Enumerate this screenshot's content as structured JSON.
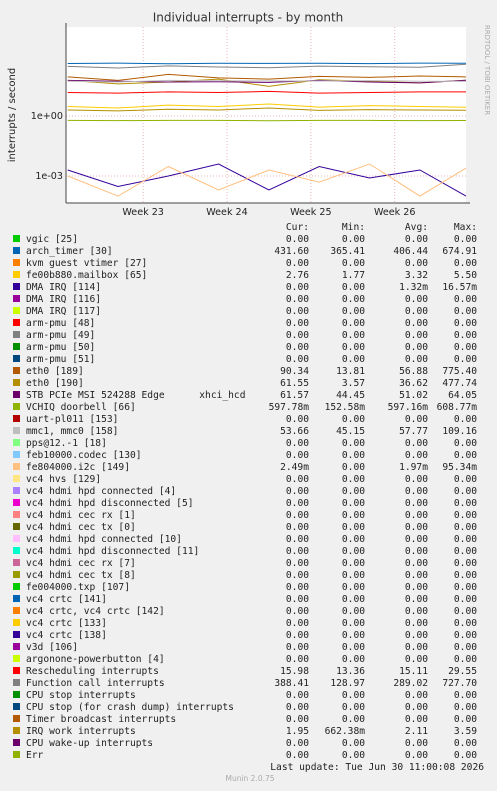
{
  "chart_data": {
    "type": "line",
    "title": "Individual interrupts - by month",
    "y_label": "interrupts / second",
    "side_text": "RRDTOOL / TOBI OETIKER",
    "log_scale": true,
    "grid": true,
    "ylim": [
      4.5e-05,
      28000
    ],
    "yticks": [
      {
        "value": 1,
        "label": "1e+00"
      },
      {
        "value": 0.001,
        "label": "1e-03"
      }
    ],
    "xlim": [
      22.08,
      26.85
    ],
    "xticks": [
      {
        "value": 23,
        "label": "Week 23"
      },
      {
        "value": 24,
        "label": "Week 24"
      },
      {
        "value": 25,
        "label": "Week 25"
      },
      {
        "value": 26,
        "label": "Week 26"
      }
    ],
    "x": [
      22.1,
      22.7,
      23.3,
      23.9,
      24.5,
      25.1,
      25.7,
      26.3,
      26.85
    ],
    "stat_headers": [
      "Cur:",
      "Min:",
      "Avg:",
      "Max:"
    ],
    "series": [
      {
        "name": "vgic [25]",
        "color": "#00cc00",
        "cur": "0.00",
        "min": "0.00",
        "avg": "0.00",
        "max": "0.00"
      },
      {
        "name": "arch_timer [30]",
        "color": "#0066b3",
        "cur": "431.60",
        "min": "365.41",
        "avg": "406.44",
        "max": "674.91",
        "values": [
          420,
          440,
          410,
          430,
          425,
          435,
          415,
          440,
          431.6
        ]
      },
      {
        "name": "kvm guest vtimer [27]",
        "color": "#ff8000",
        "cur": "0.00",
        "min": "0.00",
        "avg": "0.00",
        "max": "0.00"
      },
      {
        "name": "fe00b880.mailbox [65]",
        "color": "#ffcc00",
        "cur": "2.76",
        "min": "1.77",
        "avg": "3.32",
        "max": "5.50",
        "values": [
          3,
          2.5,
          3.5,
          3,
          4,
          2.8,
          3.3,
          3,
          2.76
        ]
      },
      {
        "name": "DMA IRQ [114]",
        "color": "#330099",
        "cur": "0.00",
        "min": "0.00",
        "avg": "1.32m",
        "max": "16.57m",
        "values": [
          0.002,
          0.0003,
          0.001,
          0.004,
          0.0002,
          0.003,
          0.0008,
          0.002,
          0.0001
        ]
      },
      {
        "name": "DMA IRQ [116]",
        "color": "#990099",
        "cur": "0.00",
        "min": "0.00",
        "avg": "0.00",
        "max": "0.00"
      },
      {
        "name": "DMA IRQ [117]",
        "color": "#ccff00",
        "cur": "0.00",
        "min": "0.00",
        "avg": "0.00",
        "max": "0.00"
      },
      {
        "name": "arm-pmu [48]",
        "color": "#ff0000",
        "cur": "0.00",
        "min": "0.00",
        "avg": "0.00",
        "max": "0.00"
      },
      {
        "name": "arm-pmu [49]",
        "color": "#808080",
        "cur": "0.00",
        "min": "0.00",
        "avg": "0.00",
        "max": "0.00"
      },
      {
        "name": "arm-pmu [50]",
        "color": "#008f00",
        "cur": "0.00",
        "min": "0.00",
        "avg": "0.00",
        "max": "0.00"
      },
      {
        "name": "arm-pmu [51]",
        "color": "#00487d",
        "cur": "0.00",
        "min": "0.00",
        "avg": "0.00",
        "max": "0.00"
      },
      {
        "name": "eth0 [189]",
        "color": "#b35a00",
        "cur": "90.34",
        "min": "13.81",
        "avg": "56.88",
        "max": "775.40",
        "values": [
          90,
          60,
          120,
          80,
          70,
          95,
          85,
          100,
          90.34
        ]
      },
      {
        "name": "eth0 [190]",
        "color": "#b38f00",
        "cur": "61.55",
        "min": "3.57",
        "avg": "36.62",
        "max": "477.74",
        "values": [
          60,
          40,
          50,
          70,
          30,
          65,
          55,
          45,
          61.55
        ]
      },
      {
        "name": "STB PCIe MSI 524288 Edge      xhci_hcd",
        "color": "#6b006b",
        "cur": "61.57",
        "min": "44.45",
        "avg": "51.02",
        "max": "64.05",
        "values": [
          60,
          55,
          50,
          52,
          48,
          60,
          50,
          45,
          61.57
        ]
      },
      {
        "name": "VCHIQ doorbell [66]",
        "color": "#8fb300",
        "cur": "597.78m",
        "min": "152.58m",
        "avg": "597.16m",
        "max": "608.77m",
        "values": [
          0.6,
          0.59,
          0.6,
          0.6,
          0.58,
          0.6,
          0.6,
          0.59,
          0.598
        ]
      },
      {
        "name": "uart-pl011 [153]",
        "color": "#b30000",
        "cur": "0.00",
        "min": "0.00",
        "avg": "0.00",
        "max": "0.00"
      },
      {
        "name": "mmc1, mmc0 [158]",
        "color": "#bebebe",
        "cur": "53.66",
        "min": "45.15",
        "avg": "57.77",
        "max": "109.16",
        "values": [
          55,
          50,
          60,
          58,
          57,
          56,
          59,
          54,
          53.66
        ]
      },
      {
        "name": "pps@12.-1 [18]",
        "color": "#80ff80",
        "cur": "0.00",
        "min": "0.00",
        "avg": "0.00",
        "max": "0.00"
      },
      {
        "name": "feb10000.codec [130]",
        "color": "#80c9ff",
        "cur": "0.00",
        "min": "0.00",
        "avg": "0.00",
        "max": "0.00"
      },
      {
        "name": "fe804000.i2c [149]",
        "color": "#ffc080",
        "cur": "2.49m",
        "min": "0.00",
        "avg": "1.97m",
        "max": "95.34m",
        "values": [
          0.001,
          0.0001,
          0.003,
          0.0002,
          0.002,
          0.0005,
          0.004,
          0.0001,
          0.00249
        ]
      },
      {
        "name": "vc4 hvs [129]",
        "color": "#ffe680",
        "cur": "0.00",
        "min": "0.00",
        "avg": "0.00",
        "max": "0.00"
      },
      {
        "name": "vc4 hdmi hpd connected [4]",
        "color": "#aa80ff",
        "cur": "0.00",
        "min": "0.00",
        "avg": "0.00",
        "max": "0.00"
      },
      {
        "name": "vc4 hdmi hpd disconnected [5]",
        "color": "#ee00cc",
        "cur": "0.00",
        "min": "0.00",
        "avg": "0.00",
        "max": "0.00"
      },
      {
        "name": "vc4 hdmi cec rx [1]",
        "color": "#ff8080",
        "cur": "0.00",
        "min": "0.00",
        "avg": "0.00",
        "max": "0.00"
      },
      {
        "name": "vc4 hdmi cec tx [0]",
        "color": "#666600",
        "cur": "0.00",
        "min": "0.00",
        "avg": "0.00",
        "max": "0.00"
      },
      {
        "name": "vc4 hdmi hpd connected [10]",
        "color": "#ffbfff",
        "cur": "0.00",
        "min": "0.00",
        "avg": "0.00",
        "max": "0.00"
      },
      {
        "name": "vc4 hdmi hpd disconnected [11]",
        "color": "#00ffcc",
        "cur": "0.00",
        "min": "0.00",
        "avg": "0.00",
        "max": "0.00"
      },
      {
        "name": "vc4 hdmi cec rx [7]",
        "color": "#cc6699",
        "cur": "0.00",
        "min": "0.00",
        "avg": "0.00",
        "max": "0.00"
      },
      {
        "name": "vc4 hdmi cec tx [8]",
        "color": "#999900",
        "cur": "0.00",
        "min": "0.00",
        "avg": "0.00",
        "max": "0.00"
      },
      {
        "name": "fe004000.txp [107]",
        "color": "#00cc00",
        "cur": "0.00",
        "min": "0.00",
        "avg": "0.00",
        "max": "0.00"
      },
      {
        "name": "vc4 crtc [141]",
        "color": "#0066b3",
        "cur": "0.00",
        "min": "0.00",
        "avg": "0.00",
        "max": "0.00"
      },
      {
        "name": "vc4 crtc, vc4 crtc [142]",
        "color": "#ff8000",
        "cur": "0.00",
        "min": "0.00",
        "avg": "0.00",
        "max": "0.00"
      },
      {
        "name": "vc4 crtc [133]",
        "color": "#ffcc00",
        "cur": "0.00",
        "min": "0.00",
        "avg": "0.00",
        "max": "0.00"
      },
      {
        "name": "vc4 crtc [138]",
        "color": "#330099",
        "cur": "0.00",
        "min": "0.00",
        "avg": "0.00",
        "max": "0.00"
      },
      {
        "name": "v3d [106]",
        "color": "#990099",
        "cur": "0.00",
        "min": "0.00",
        "avg": "0.00",
        "max": "0.00"
      },
      {
        "name": "argonone-powerbutton [4]",
        "color": "#ccff00",
        "cur": "0.00",
        "min": "0.00",
        "avg": "0.00",
        "max": "0.00"
      },
      {
        "name": "Rescheduling interrupts",
        "color": "#ff0000",
        "cur": "15.98",
        "min": "13.36",
        "avg": "15.11",
        "max": "29.55",
        "values": [
          15,
          14,
          16,
          15,
          17,
          14,
          15,
          16,
          15.98
        ]
      },
      {
        "name": "Function call interrupts",
        "color": "#808080",
        "cur": "388.41",
        "min": "128.97",
        "avg": "289.02",
        "max": "727.70",
        "values": [
          300,
          250,
          320,
          280,
          260,
          310,
          290,
          270,
          388.41
        ]
      },
      {
        "name": "CPU stop interrupts",
        "color": "#008f00",
        "cur": "0.00",
        "min": "0.00",
        "avg": "0.00",
        "max": "0.00"
      },
      {
        "name": "CPU stop (for crash dump) interrupts",
        "color": "#00487d",
        "cur": "0.00",
        "min": "0.00",
        "avg": "0.00",
        "max": "0.00"
      },
      {
        "name": "Timer broadcast interrupts",
        "color": "#b35a00",
        "cur": "0.00",
        "min": "0.00",
        "avg": "0.00",
        "max": "0.00"
      },
      {
        "name": "IRQ work interrupts",
        "color": "#b38f00",
        "cur": "1.95",
        "min": "662.38m",
        "avg": "2.11",
        "max": "3.59",
        "values": [
          2,
          1.8,
          2.2,
          2,
          2.5,
          1.9,
          2.1,
          2,
          1.95
        ]
      },
      {
        "name": "CPU wake-up interrupts",
        "color": "#6b006b",
        "cur": "0.00",
        "min": "0.00",
        "avg": "0.00",
        "max": "0.00"
      },
      {
        "name": "Err",
        "color": "#8fb300",
        "cur": "0.00",
        "min": "0.00",
        "avg": "0.00",
        "max": "0.00"
      }
    ],
    "last_update": "Last update: Tue Jun 30 11:00:08 2026",
    "footer": "Munin 2.0.75"
  }
}
